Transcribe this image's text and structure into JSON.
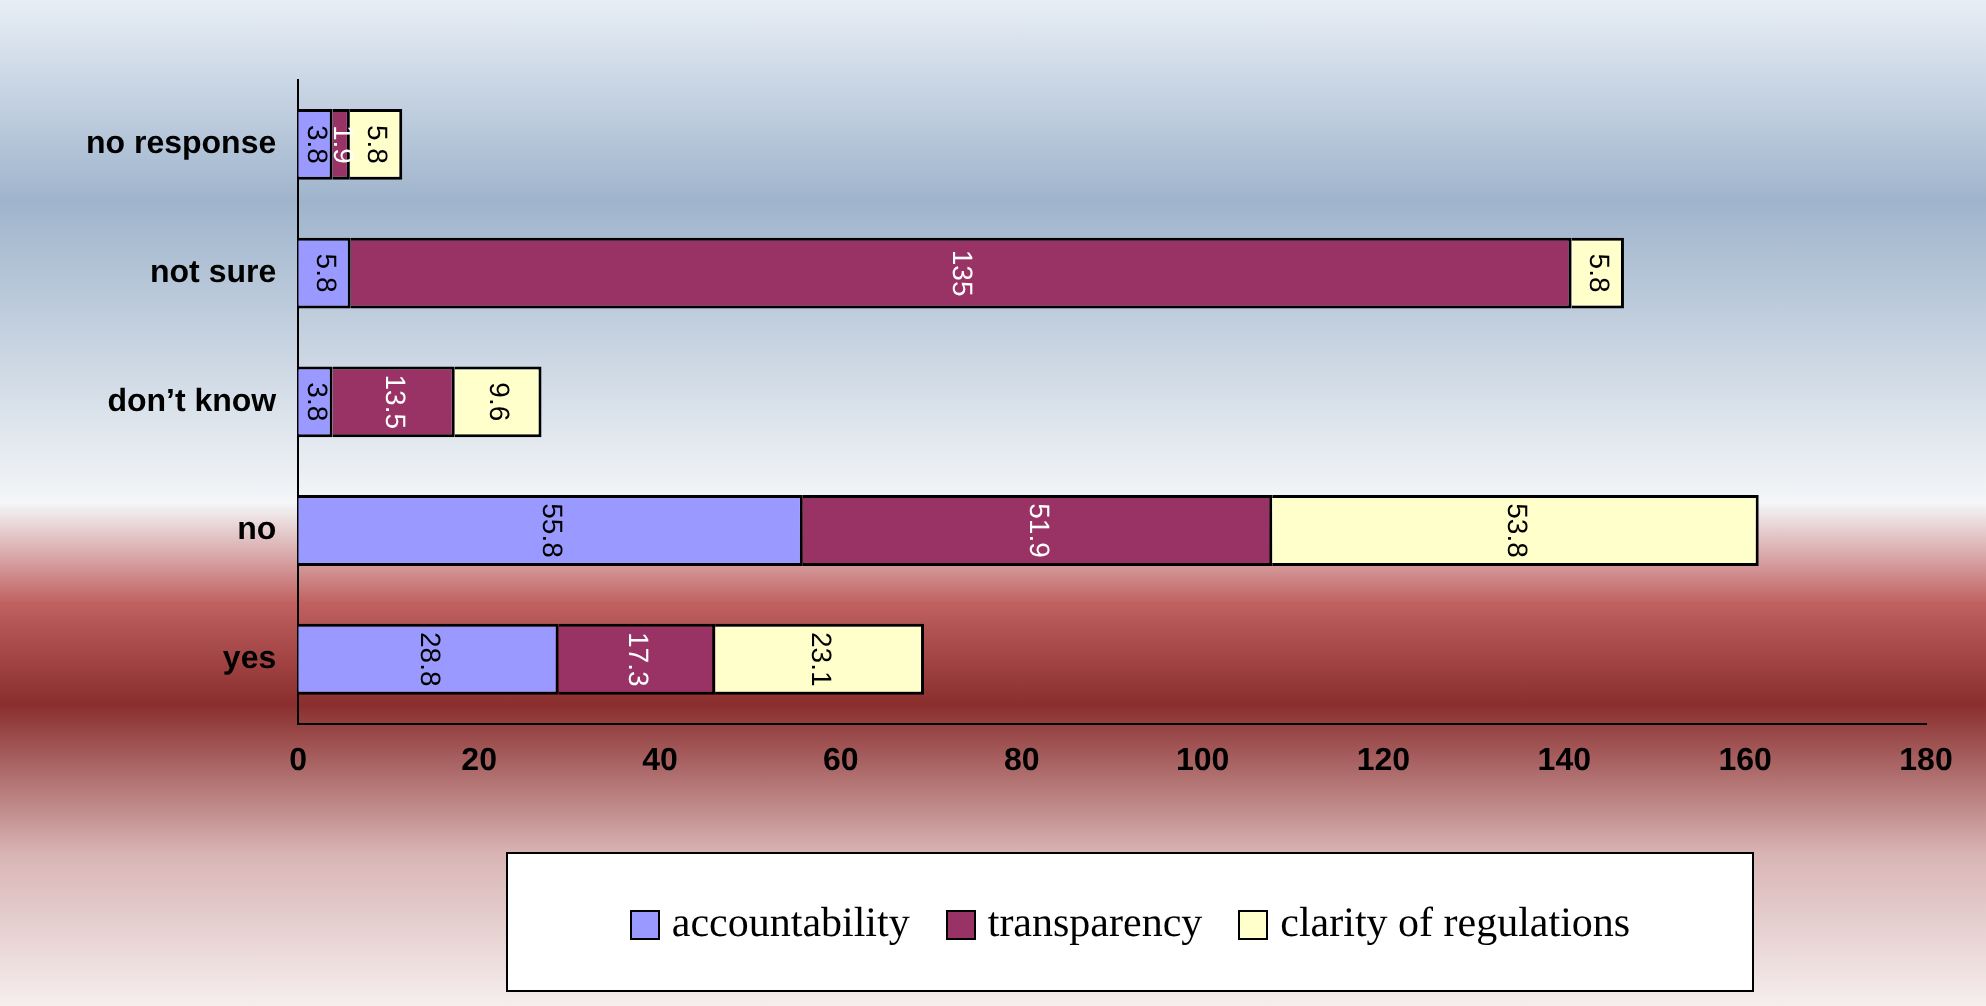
{
  "chart_data": {
    "type": "bar",
    "orientation": "horizontal",
    "stacked": true,
    "categories": [
      "no response",
      "not sure",
      "don’t know",
      "no",
      "yes"
    ],
    "series": [
      {
        "name": "accountability",
        "color": "#9999ff",
        "values": [
          3.8,
          5.8,
          3.8,
          55.8,
          28.8
        ]
      },
      {
        "name": "transparency",
        "color": "#993366",
        "values": [
          1.9,
          135,
          13.5,
          51.9,
          17.3
        ]
      },
      {
        "name": "clarity of regulations",
        "color": "#ffffcc",
        "values": [
          5.8,
          5.8,
          9.6,
          53.8,
          23.1
        ]
      }
    ],
    "xlim": [
      0,
      180
    ],
    "xticks": [
      0,
      20,
      40,
      60,
      80,
      100,
      120,
      140,
      160,
      180
    ],
    "grid": false,
    "legend": "bottom",
    "data_labels": true
  }
}
